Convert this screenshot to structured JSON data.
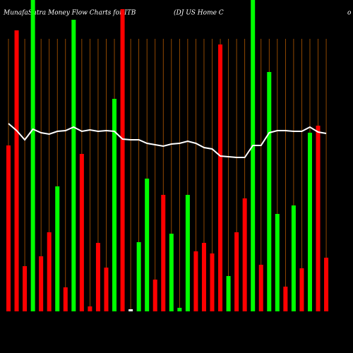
{
  "chart_data": {
    "type": "bar",
    "title": "MunafaSutra Money Flow Charts for ITB",
    "subtitle": "(DJ US Home C",
    "edge_text": "o",
    "background": "#000000",
    "grid": true,
    "grid_color": "#b35900",
    "ylim": [
      0,
      431
    ],
    "values": [
      235,
      398,
      64,
      441,
      78,
      112,
      177,
      34,
      413,
      223,
      7,
      97,
      62,
      301,
      428,
      3,
      98,
      188,
      45,
      165,
      110,
      5,
      165,
      85,
      97,
      82,
      378,
      50,
      112,
      160,
      441,
      66,
      339,
      138,
      35,
      150,
      61,
      253,
      263,
      76
    ],
    "colors": [
      "#ff0000",
      "#ff0000",
      "#ff0000",
      "#00ff00",
      "#ff0000",
      "#ff0000",
      "#00ff00",
      "#ff0000",
      "#00ff00",
      "#ff0000",
      "#ff0000",
      "#ff0000",
      "#ff0000",
      "#00ff00",
      "#ff0000",
      "#ffffff",
      "#00ff00",
      "#00ff00",
      "#ff0000",
      "#ff0000",
      "#00ff00",
      "#00ff00",
      "#00ff00",
      "#ff0000",
      "#ff0000",
      "#ff0000",
      "#ff0000",
      "#00ff00",
      "#ff0000",
      "#ff0000",
      "#00ff00",
      "#ff0000",
      "#00ff00",
      "#00ff00",
      "#ff0000",
      "#00ff00",
      "#ff0000",
      "#00ff00",
      "#ff0000",
      "#ff0000"
    ],
    "line": {
      "color": "#ffffff",
      "values": [
        266,
        256,
        243,
        258,
        253,
        251,
        255,
        256,
        261,
        255,
        257,
        255,
        256,
        255,
        244,
        243,
        243,
        238,
        236,
        234,
        237,
        238,
        241,
        238,
        232,
        230,
        220,
        219,
        218,
        218,
        235,
        235,
        253,
        256,
        256,
        255,
        255,
        261,
        254,
        252
      ]
    }
  }
}
